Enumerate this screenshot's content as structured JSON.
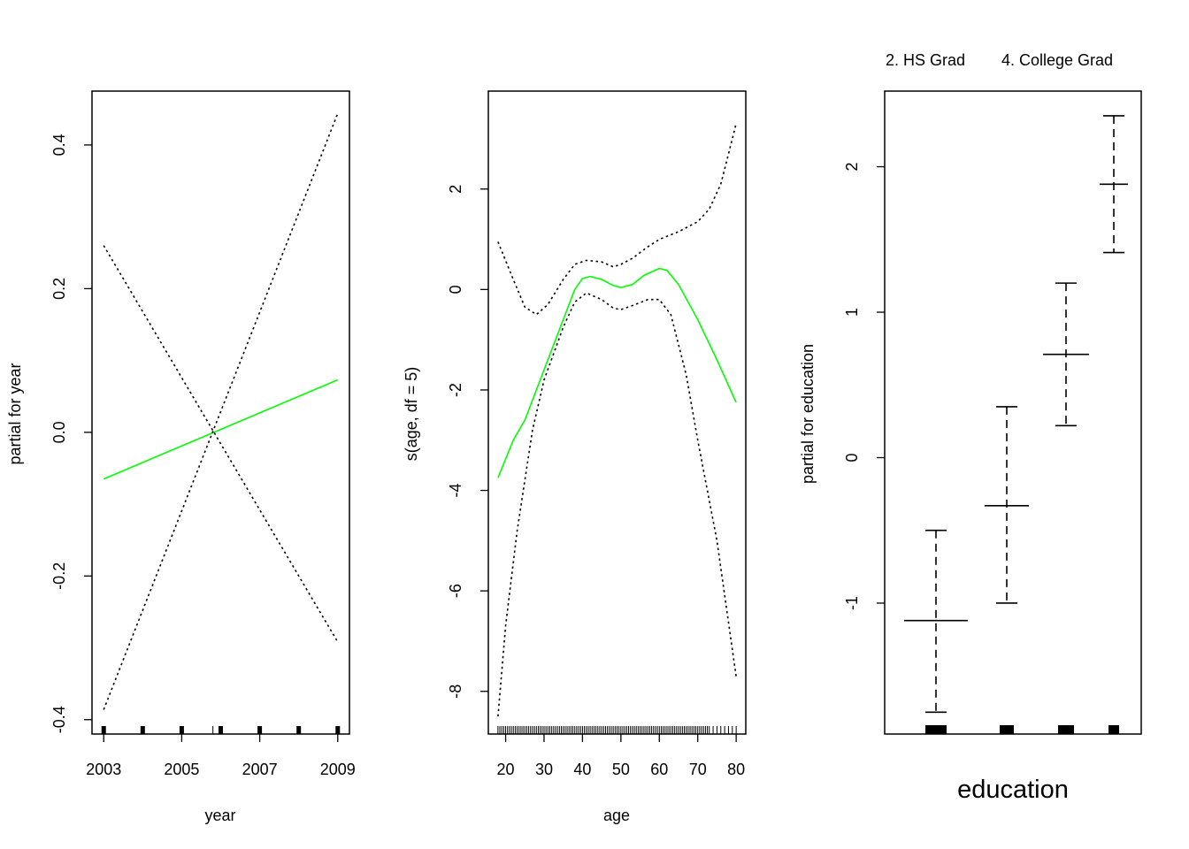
{
  "chart_data": [
    {
      "type": "line",
      "xlabel": "year",
      "ylabel": "partial for year",
      "xlim": [
        2002.7,
        2009.3
      ],
      "ylim": [
        -0.42,
        0.475
      ],
      "xticks": [
        2003,
        2005,
        2007,
        2009
      ],
      "yticks": [
        -0.4,
        -0.2,
        0.0,
        0.2,
        0.4
      ],
      "ytick_labels": [
        "-0.4",
        "-0.2",
        "0.0",
        "0.2",
        "0.4"
      ],
      "grid": false,
      "colors": {
        "fit": "#00ff00",
        "band": "#000000"
      },
      "series": [
        {
          "role": "fit",
          "style": "solid",
          "x": [
            2003,
            2009
          ],
          "y": [
            -0.065,
            0.073
          ]
        },
        {
          "role": "upper",
          "style": "dotted",
          "x": [
            2003,
            2009
          ],
          "y": [
            0.26,
            -0.292
          ]
        },
        {
          "role": "lower",
          "style": "dotted",
          "x": [
            2003,
            2009
          ],
          "y": [
            -0.386,
            0.444
          ]
        }
      ],
      "rug": [
        2003,
        2004,
        2005,
        2005.8,
        2006,
        2007,
        2008,
        2009
      ]
    },
    {
      "type": "line",
      "xlabel": "age",
      "ylabel": "s(age, df = 5)",
      "xlim": [
        15.5,
        82.5
      ],
      "ylim": [
        -8.85,
        3.95
      ],
      "xticks": [
        20,
        30,
        40,
        50,
        60,
        70,
        80
      ],
      "yticks": [
        -8,
        -6,
        -4,
        -2,
        0,
        2
      ],
      "ytick_labels": [
        "-8",
        "-6",
        "-4",
        "-2",
        "0",
        "2"
      ],
      "grid": false,
      "colors": {
        "fit": "#00ff00",
        "band": "#000000"
      },
      "series": [
        {
          "role": "fit",
          "style": "solid",
          "x": [
            18,
            22,
            25,
            30,
            35,
            38,
            40,
            42,
            45,
            48,
            50,
            53,
            56,
            60,
            62,
            65,
            70,
            75,
            80
          ],
          "y": [
            -3.75,
            -3.0,
            -2.6,
            -1.6,
            -0.6,
            0.0,
            0.22,
            0.26,
            0.2,
            0.08,
            0.04,
            0.1,
            0.28,
            0.42,
            0.38,
            0.1,
            -0.6,
            -1.4,
            -2.25
          ]
        },
        {
          "role": "upper",
          "style": "dotted",
          "x": [
            18,
            22,
            25,
            28,
            31,
            35,
            38,
            41,
            45,
            48,
            50,
            53,
            57,
            60,
            65,
            70,
            73,
            76,
            80
          ],
          "y": [
            0.95,
            0.2,
            -0.35,
            -0.5,
            -0.3,
            0.2,
            0.5,
            0.58,
            0.55,
            0.45,
            0.5,
            0.62,
            0.85,
            1.0,
            1.15,
            1.35,
            1.6,
            2.1,
            3.3
          ]
        },
        {
          "role": "lower",
          "style": "dotted",
          "x": [
            18,
            20,
            23,
            27,
            30,
            35,
            38,
            41,
            45,
            48,
            50,
            53,
            57,
            60,
            63,
            67,
            70,
            75,
            80
          ],
          "y": [
            -8.5,
            -6.7,
            -4.8,
            -2.8,
            -1.8,
            -0.75,
            -0.25,
            -0.07,
            -0.2,
            -0.37,
            -0.4,
            -0.32,
            -0.2,
            -0.2,
            -0.5,
            -1.7,
            -3.0,
            -5.0,
            -7.7
          ]
        }
      ],
      "rug_range": [
        18,
        80
      ]
    },
    {
      "type": "bar",
      "xlabel": "education",
      "ylabel": "partial for education",
      "ylim": [
        -1.9,
        2.52
      ],
      "yticks": [
        -1,
        0,
        1,
        2
      ],
      "ytick_labels": [
        "-1",
        "0",
        "1",
        "2"
      ],
      "grid": false,
      "top_labels": [
        "2. HS Grad",
        "4. College Grad"
      ],
      "levels": [
        {
          "value": -1.12,
          "lower": -1.75,
          "upper": -0.5
        },
        {
          "value": -0.33,
          "lower": -1.0,
          "upper": 0.35
        },
        {
          "value": 0.71,
          "lower": 0.22,
          "upper": 1.2
        },
        {
          "value": 1.88,
          "lower": 1.41,
          "upper": 2.35
        }
      ]
    }
  ]
}
